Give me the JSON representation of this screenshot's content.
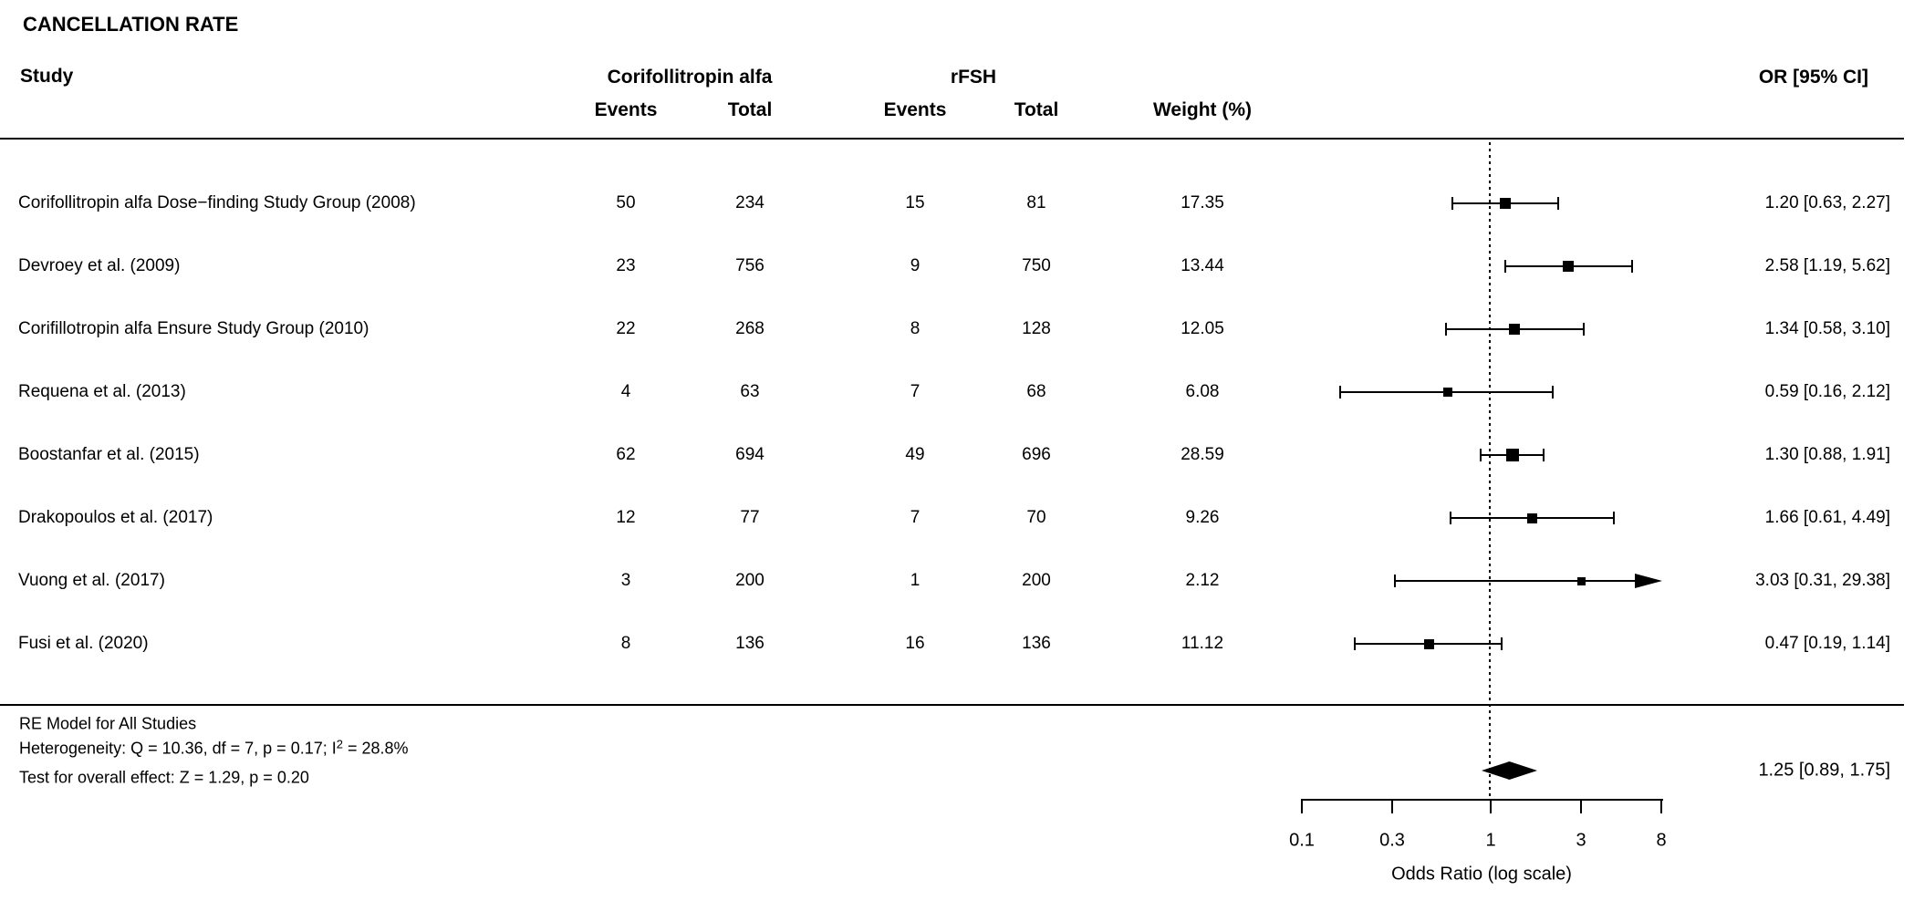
{
  "title": "CANCELLATION RATE",
  "table": {
    "study_header": "Study",
    "group1_header": "Corifollitropin alfa",
    "group2_header": "rFSH",
    "events_header_1": "Events",
    "total_header_1": "Total",
    "events_header_2": "Events",
    "total_header_2": "Total",
    "weight_header": "Weight (%)",
    "or_header": "OR [95% CI]"
  },
  "chart_data": {
    "type": "forest",
    "x_scale": "log",
    "xlabel": "Odds Ratio (log scale)",
    "x_ticks": [
      "0.1",
      "0.3",
      "1",
      "3",
      "8"
    ],
    "x_tick_values": [
      0.1,
      0.3,
      1,
      3,
      8
    ],
    "x_range": [
      0.1,
      8
    ],
    "reference_line": 1,
    "studies": [
      {
        "label": "Corifollitropin alfa Dose−finding Study Group (2008)",
        "events1": "50",
        "total1": "234",
        "events2": "15",
        "total2": "81",
        "weight": "17.35",
        "or": 1.2,
        "ci_low": 0.63,
        "ci_high": 2.27,
        "or_label": "1.20 [0.63,  2.27]"
      },
      {
        "label": "Devroey et al. (2009)",
        "events1": "23",
        "total1": "756",
        "events2": "9",
        "total2": "750",
        "weight": "13.44",
        "or": 2.58,
        "ci_low": 1.19,
        "ci_high": 5.62,
        "or_label": "2.58 [1.19,  5.62]"
      },
      {
        "label": "Corifillotropin alfa Ensure Study Group (2010)",
        "events1": "22",
        "total1": "268",
        "events2": "8",
        "total2": "128",
        "weight": "12.05",
        "or": 1.34,
        "ci_low": 0.58,
        "ci_high": 3.1,
        "or_label": "1.34 [0.58,  3.10]"
      },
      {
        "label": "Requena et al. (2013)",
        "events1": "4",
        "total1": "63",
        "events2": "7",
        "total2": "68",
        "weight": "6.08",
        "or": 0.59,
        "ci_low": 0.16,
        "ci_high": 2.12,
        "or_label": "0.59 [0.16,  2.12]"
      },
      {
        "label": "Boostanfar et al. (2015)",
        "events1": "62",
        "total1": "694",
        "events2": "49",
        "total2": "696",
        "weight": "28.59",
        "or": 1.3,
        "ci_low": 0.88,
        "ci_high": 1.91,
        "or_label": "1.30 [0.88,  1.91]"
      },
      {
        "label": "Drakopoulos et al. (2017)",
        "events1": "12",
        "total1": "77",
        "events2": "7",
        "total2": "70",
        "weight": "9.26",
        "or": 1.66,
        "ci_low": 0.61,
        "ci_high": 4.49,
        "or_label": "1.66 [0.61,  4.49]"
      },
      {
        "label": "Vuong et al. (2017)",
        "events1": "3",
        "total1": "200",
        "events2": "1",
        "total2": "200",
        "weight": "2.12",
        "or": 3.03,
        "ci_low": 0.31,
        "ci_high": 29.38,
        "or_label": "3.03 [0.31, 29.38]"
      },
      {
        "label": "Fusi et al. (2020)",
        "events1": "8",
        "total1": "136",
        "events2": "16",
        "total2": "136",
        "weight": "11.12",
        "or": 0.47,
        "ci_low": 0.19,
        "ci_high": 1.14,
        "or_label": "0.47 [0.19,  1.14]"
      }
    ],
    "summary": {
      "model_label": "RE Model for All Studies",
      "heterogeneity_prefix": "Heterogeneity: Q = 10.36, df = 7, p = 0.17; I",
      "heterogeneity_sup": "2",
      "heterogeneity_suffix": " = 28.8%",
      "overall_effect": "Test for overall effect: Z = 1.29, p = 0.20",
      "or": 1.25,
      "ci_low": 0.89,
      "ci_high": 1.75,
      "or_label": "1.25 [0.89,  1.75]"
    }
  }
}
